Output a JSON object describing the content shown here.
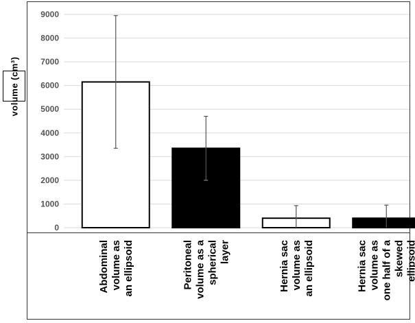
{
  "chart_data": {
    "type": "bar",
    "ylabel": "volume (cm³)",
    "ylim": [
      0,
      9000
    ],
    "yticks": [
      "0",
      "1000",
      "2000",
      "3000",
      "4000",
      "5000",
      "6000",
      "7000",
      "8000",
      "9000"
    ],
    "grid": true,
    "categories": [
      [
        "Abdominal",
        "volume as",
        "an ellipsoid"
      ],
      [
        "Peritoneal",
        "volume as a",
        "spherical",
        "layer"
      ],
      [
        "Hernia sac",
        "volume as",
        "an ellipsoid"
      ],
      [
        "Hernia sac",
        "volume as",
        "one half of a",
        "skewed",
        "ellipsoid"
      ]
    ],
    "values": [
      6150,
      3350,
      400,
      400
    ],
    "error_low": [
      3350,
      2000,
      0,
      0
    ],
    "error_high": [
      8950,
      4700,
      930,
      950
    ],
    "bar_fills": [
      "#ffffff",
      "#000000",
      "#ffffff",
      "#000000"
    ]
  }
}
